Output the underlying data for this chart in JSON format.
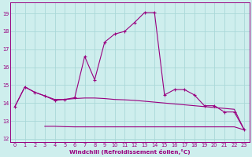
{
  "xlabel": "Windchill (Refroidissement éolien,°C)",
  "bg_color": "#ceeeed",
  "grid_color": "#aad8d8",
  "line_color": "#990080",
  "xlim": [
    -0.5,
    23.5
  ],
  "ylim": [
    11.8,
    19.6
  ],
  "yticks": [
    12,
    13,
    14,
    15,
    16,
    17,
    18,
    19
  ],
  "xticks": [
    0,
    1,
    2,
    3,
    4,
    5,
    6,
    7,
    8,
    9,
    10,
    11,
    12,
    13,
    14,
    15,
    16,
    17,
    18,
    19,
    20,
    21,
    22,
    23
  ],
  "series": [
    {
      "x": [
        0,
        1,
        2,
        3,
        4,
        5,
        6,
        7,
        8,
        9,
        10,
        11,
        12,
        13,
        14,
        15,
        16,
        17,
        18,
        19,
        20,
        21,
        22,
        23
      ],
      "y": [
        13.8,
        14.9,
        14.6,
        14.4,
        14.15,
        14.2,
        14.3,
        16.6,
        15.3,
        17.4,
        17.85,
        18.0,
        18.5,
        19.05,
        19.05,
        14.45,
        14.75,
        14.75,
        14.45,
        13.85,
        13.85,
        13.5,
        13.5,
        12.5
      ],
      "marker": true
    },
    {
      "x": [
        0,
        1,
        2,
        3,
        4,
        5,
        6,
        7,
        8,
        9,
        10,
        11,
        12,
        13,
        14,
        15,
        16,
        17,
        18,
        19,
        20,
        21,
        22,
        23
      ],
      "y": [
        13.8,
        14.9,
        14.6,
        14.4,
        14.2,
        14.2,
        14.25,
        14.28,
        14.28,
        14.25,
        14.2,
        14.18,
        14.15,
        14.1,
        14.05,
        14.0,
        13.95,
        13.9,
        13.85,
        13.8,
        13.75,
        13.7,
        13.65,
        12.5
      ],
      "marker": false
    },
    {
      "x": [
        3,
        4,
        5,
        6,
        7,
        8,
        9,
        10,
        11,
        12,
        13,
        14,
        15,
        16,
        17,
        18,
        19,
        20,
        21,
        22,
        23
      ],
      "y": [
        12.7,
        12.7,
        12.68,
        12.67,
        12.67,
        12.67,
        12.67,
        12.67,
        12.67,
        12.67,
        12.67,
        12.67,
        12.67,
        12.67,
        12.67,
        12.67,
        12.67,
        12.67,
        12.67,
        12.67,
        12.5
      ],
      "marker": false
    }
  ]
}
